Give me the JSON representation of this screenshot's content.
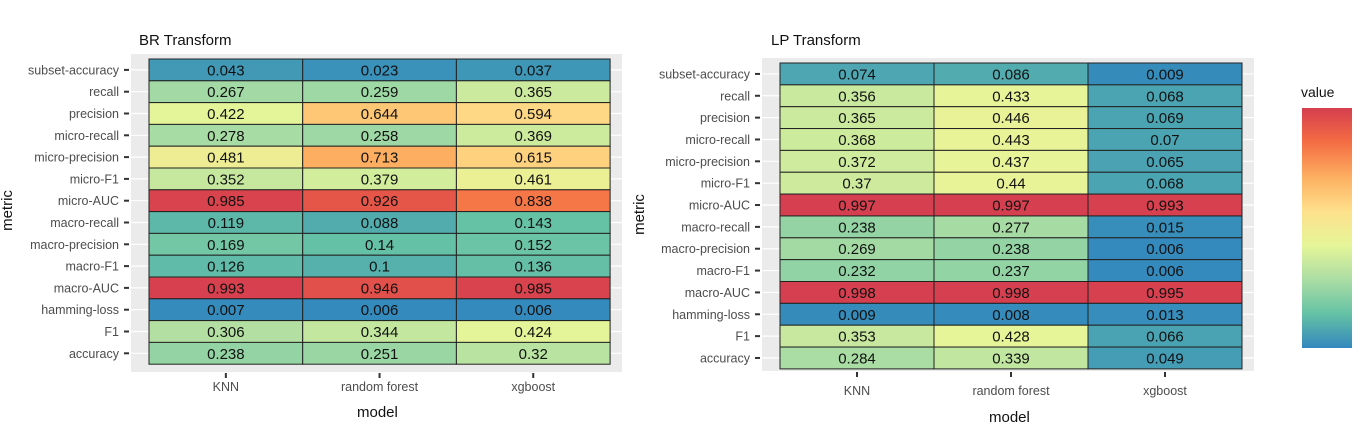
{
  "chart_data": [
    {
      "type": "heatmap",
      "title": "BR Transform",
      "xlabel": "model",
      "ylabel": "metric",
      "x_categories": [
        "KNN",
        "random forest",
        "xgboost"
      ],
      "y_categories": [
        "subset-accuracy",
        "recall",
        "precision",
        "micro-recall",
        "micro-precision",
        "micro-F1",
        "micro-AUC",
        "macro-recall",
        "macro-precision",
        "macro-F1",
        "macro-AUC",
        "hamming-loss",
        "F1",
        "accuracy"
      ],
      "values": [
        [
          0.043,
          0.023,
          0.037
        ],
        [
          0.267,
          0.259,
          0.365
        ],
        [
          0.422,
          0.644,
          0.594
        ],
        [
          0.278,
          0.258,
          0.369
        ],
        [
          0.481,
          0.713,
          0.615
        ],
        [
          0.352,
          0.379,
          0.461
        ],
        [
          0.985,
          0.926,
          0.838
        ],
        [
          0.119,
          0.088,
          0.143
        ],
        [
          0.169,
          0.14,
          0.152
        ],
        [
          0.126,
          0.1,
          0.136
        ],
        [
          0.993,
          0.946,
          0.985
        ],
        [
          0.007,
          0.006,
          0.006
        ],
        [
          0.306,
          0.344,
          0.424
        ],
        [
          0.238,
          0.251,
          0.32
        ]
      ],
      "labels": [
        [
          "0.043",
          "0.023",
          "0.037"
        ],
        [
          "0.267",
          "0.259",
          "0.365"
        ],
        [
          "0.422",
          "0.644",
          "0.594"
        ],
        [
          "0.278",
          "0.258",
          "0.369"
        ],
        [
          "0.481",
          "0.713",
          "0.615"
        ],
        [
          "0.352",
          "0.379",
          "0.461"
        ],
        [
          "0.985",
          "0.926",
          "0.838"
        ],
        [
          "0.119",
          "0.088",
          "0.143"
        ],
        [
          "0.169",
          "0.14",
          "0.152"
        ],
        [
          "0.126",
          "0.1",
          "0.136"
        ],
        [
          "0.993",
          "0.946",
          "0.985"
        ],
        [
          "0.007",
          "0.006",
          "0.006"
        ],
        [
          "0.306",
          "0.344",
          "0.424"
        ],
        [
          "0.238",
          "0.251",
          "0.32"
        ]
      ]
    },
    {
      "type": "heatmap",
      "title": "LP Transform",
      "xlabel": "model",
      "ylabel": "metric",
      "x_categories": [
        "KNN",
        "random forest",
        "xgboost"
      ],
      "y_categories": [
        "subset-accuracy",
        "recall",
        "precision",
        "micro-recall",
        "micro-precision",
        "micro-F1",
        "micro-AUC",
        "macro-recall",
        "macro-precision",
        "macro-F1",
        "macro-AUC",
        "hamming-loss",
        "F1",
        "accuracy"
      ],
      "values": [
        [
          0.074,
          0.086,
          0.009
        ],
        [
          0.356,
          0.433,
          0.068
        ],
        [
          0.365,
          0.446,
          0.069
        ],
        [
          0.368,
          0.443,
          0.07
        ],
        [
          0.372,
          0.437,
          0.065
        ],
        [
          0.37,
          0.44,
          0.068
        ],
        [
          0.997,
          0.997,
          0.993
        ],
        [
          0.238,
          0.277,
          0.015
        ],
        [
          0.269,
          0.238,
          0.006
        ],
        [
          0.232,
          0.237,
          0.006
        ],
        [
          0.998,
          0.998,
          0.995
        ],
        [
          0.009,
          0.008,
          0.013
        ],
        [
          0.353,
          0.428,
          0.066
        ],
        [
          0.284,
          0.339,
          0.049
        ]
      ],
      "labels": [
        [
          "0.074",
          "0.086",
          "0.009"
        ],
        [
          "0.356",
          "0.433",
          "0.068"
        ],
        [
          "0.365",
          "0.446",
          "0.069"
        ],
        [
          "0.368",
          "0.443",
          "0.07"
        ],
        [
          "0.372",
          "0.437",
          "0.065"
        ],
        [
          "0.37",
          "0.44",
          "0.068"
        ],
        [
          "0.997",
          "0.997",
          "0.993"
        ],
        [
          "0.238",
          "0.277",
          "0.015"
        ],
        [
          "0.269",
          "0.238",
          "0.006"
        ],
        [
          "0.232",
          "0.237",
          "0.006"
        ],
        [
          "0.998",
          "0.998",
          "0.995"
        ],
        [
          "0.009",
          "0.008",
          "0.013"
        ],
        [
          "0.353",
          "0.428",
          "0.066"
        ],
        [
          "0.284",
          "0.339",
          "0.049"
        ]
      ]
    }
  ],
  "legend": {
    "title": "value",
    "colors": [
      "#d53e4f",
      "#f46d43",
      "#fdae61",
      "#fee08b",
      "#e6f598",
      "#abdda4",
      "#66c2a5",
      "#3288bd"
    ]
  }
}
